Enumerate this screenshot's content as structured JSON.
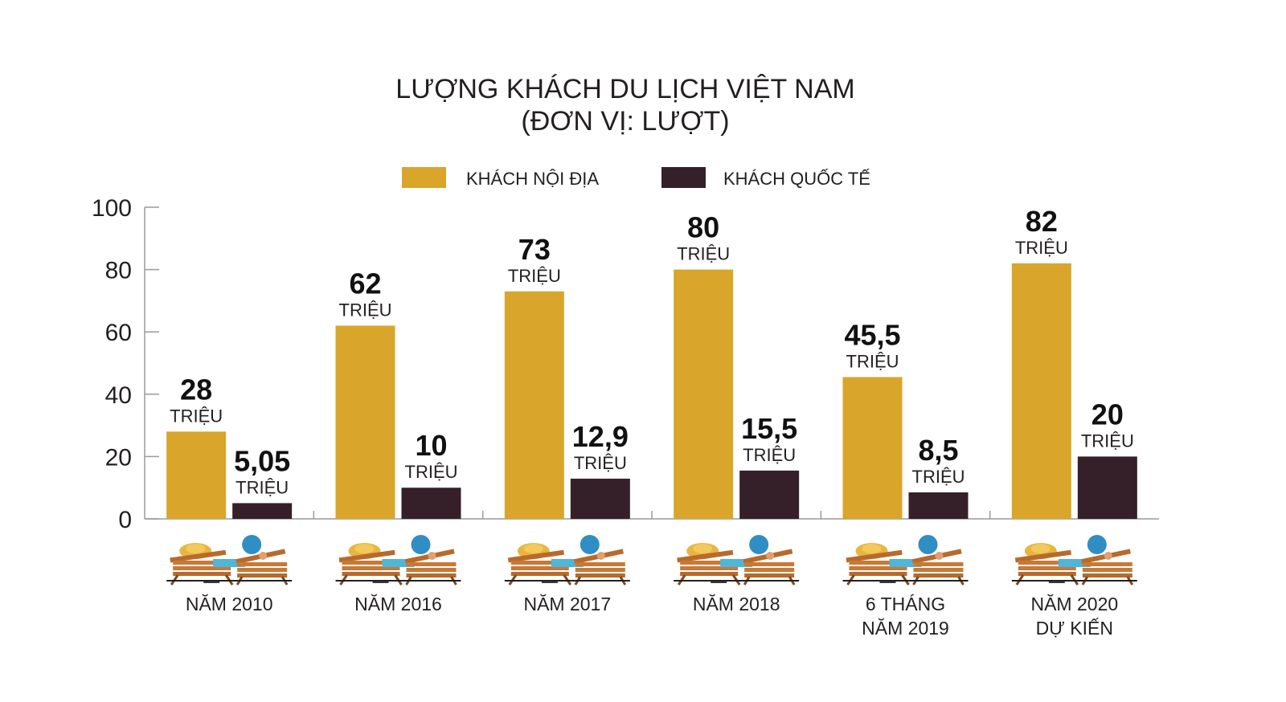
{
  "title_line1": "LƯỢNG KHÁCH DU LỊCH VIỆT NAM",
  "title_line2": "(ĐƠN VỊ: LƯỢT)",
  "colors": {
    "domestic": "#d9a52b",
    "international": "#35202a",
    "axis": "#9a9a9a",
    "text": "#231f20"
  },
  "chart_data": {
    "type": "bar",
    "title": "LƯỢNG KHÁCH DU LỊCH VIỆT NAM (ĐƠN VỊ: LƯỢT)",
    "ylim": [
      0,
      100
    ],
    "yticks": [
      "0",
      "20",
      "40",
      "60",
      "80",
      "100"
    ],
    "grid": false,
    "legend_position": "top-center",
    "categories": [
      [
        "NĂM 2010"
      ],
      [
        "NĂM 2016"
      ],
      [
        "NĂM 2017"
      ],
      [
        "NĂM 2018"
      ],
      [
        "6 THÁNG",
        "NĂM 2019"
      ],
      [
        "NĂM 2020",
        "DỰ KIẾN"
      ]
    ],
    "series": [
      {
        "name": "KHÁCH NỘI ĐỊA",
        "values": [
          28,
          62,
          73,
          80,
          45.5,
          82
        ],
        "labels": [
          "28",
          "62",
          "73",
          "80",
          "45,5",
          "82"
        ],
        "unit": "TRIỆU"
      },
      {
        "name": "KHÁCH QUỐC TẾ",
        "values": [
          5.05,
          10,
          12.9,
          15.5,
          8.5,
          20
        ],
        "labels": [
          "5,05",
          "10",
          "12,9",
          "15,5",
          "8,5",
          "20"
        ],
        "unit": "TRIỆU"
      }
    ]
  },
  "category_illustration": "beach-loungers-icon"
}
